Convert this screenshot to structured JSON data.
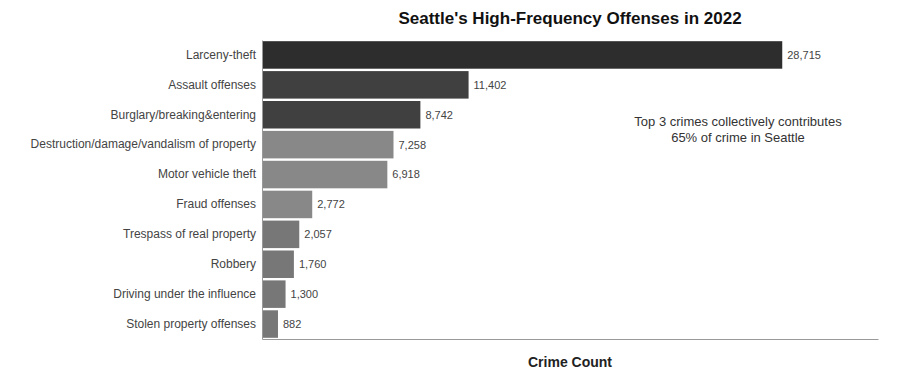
{
  "chart_data": {
    "type": "bar",
    "orientation": "horizontal",
    "title": "Seattle's High-Frequency Offenses in 2022",
    "xlabel": "Crime Count",
    "categories": [
      "Stolen property offenses",
      "Driving under the influence",
      "Robbery",
      "Trespass of real property",
      "Fraud offenses",
      "Motor vehicle theft",
      "Destruction/damage/vandalism of property",
      "Burglary/breaking&entering",
      "Assault offenses",
      "Larceny-theft"
    ],
    "values": [
      882,
      1300,
      1760,
      2057,
      2772,
      6918,
      7258,
      8742,
      11402,
      28715
    ],
    "value_labels": [
      "882",
      "1,300",
      "1,760",
      "2,057",
      "2,772",
      "6,918",
      "7,258",
      "8,742",
      "11,402",
      "28,715"
    ],
    "data_labels": true,
    "colors": [
      "#777777",
      "#777777",
      "#777777",
      "#777777",
      "#888888",
      "#888888",
      "#888888",
      "#404040",
      "#404040",
      "#2d2d2d"
    ],
    "xlim": [
      0,
      34000
    ],
    "tick_labels": "y",
    "grid": false,
    "annotation": "Top 3 crimes collectively contributes\n65% of crime in Seattle"
  }
}
